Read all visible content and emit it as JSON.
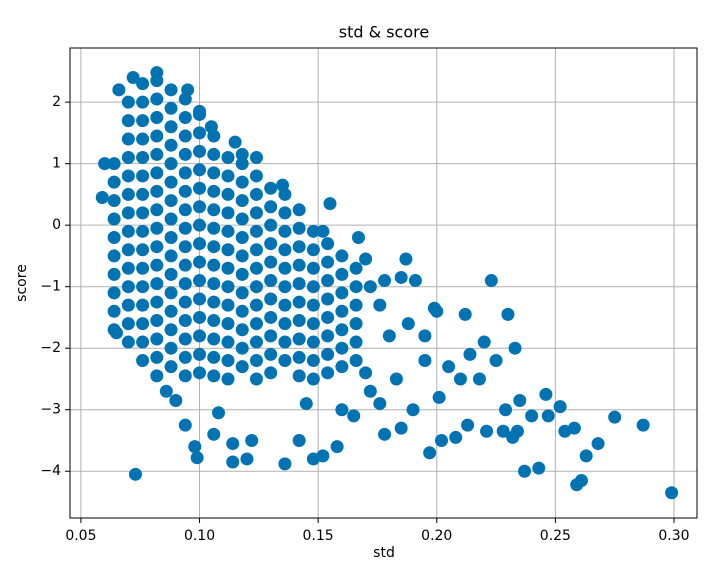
{
  "chart_data": {
    "type": "scatter",
    "title": "std & score",
    "xlabel": "std",
    "ylabel": "score",
    "color": "#0173b2",
    "grid": true,
    "xlim": [
      0.0454,
      0.3097
    ],
    "ylim": [
      -4.76,
      2.88
    ],
    "xticks": [
      0.05,
      {
        "value": 0.1,
        "label": "0.10"
      },
      0.15,
      {
        "value": 0.2,
        "label": "0.20"
      },
      0.25,
      {
        "value": 0.3,
        "label": "0.30"
      }
    ],
    "yticks": [
      {
        "value": -4,
        "label": "−4"
      },
      {
        "value": -3,
        "label": "−3"
      },
      {
        "value": -2,
        "label": "−2"
      },
      {
        "value": -1,
        "label": "−1"
      },
      0,
      1,
      2
    ],
    "x": [
      0.064,
      0.064,
      0.064,
      0.064,
      0.064,
      0.064,
      0.064,
      0.064,
      0.064,
      0.064,
      0.07,
      0.07,
      0.07,
      0.07,
      0.07,
      0.07,
      0.07,
      0.07,
      0.07,
      0.07,
      0.07,
      0.07,
      0.07,
      0.07,
      0.076,
      0.076,
      0.076,
      0.076,
      0.076,
      0.076,
      0.076,
      0.076,
      0.076,
      0.076,
      0.076,
      0.076,
      0.076,
      0.076,
      0.076,
      0.076,
      0.082,
      0.082,
      0.082,
      0.082,
      0.082,
      0.082,
      0.082,
      0.082,
      0.082,
      0.082,
      0.082,
      0.082,
      0.082,
      0.082,
      0.082,
      0.082,
      0.082,
      0.088,
      0.088,
      0.088,
      0.088,
      0.088,
      0.088,
      0.088,
      0.088,
      0.088,
      0.088,
      0.088,
      0.088,
      0.088,
      0.088,
      0.088,
      0.088,
      0.094,
      0.094,
      0.094,
      0.094,
      0.094,
      0.094,
      0.094,
      0.094,
      0.094,
      0.094,
      0.094,
      0.094,
      0.094,
      0.094,
      0.094,
      0.094,
      0.1,
      0.1,
      0.1,
      0.1,
      0.1,
      0.1,
      0.1,
      0.1,
      0.1,
      0.1,
      0.1,
      0.1,
      0.1,
      0.1,
      0.1,
      0.106,
      0.106,
      0.106,
      0.106,
      0.106,
      0.106,
      0.106,
      0.106,
      0.106,
      0.106,
      0.106,
      0.106,
      0.106,
      0.106,
      0.112,
      0.112,
      0.112,
      0.112,
      0.112,
      0.112,
      0.112,
      0.112,
      0.112,
      0.112,
      0.112,
      0.112,
      0.112,
      0.118,
      0.118,
      0.118,
      0.118,
      0.118,
      0.118,
      0.118,
      0.118,
      0.118,
      0.118,
      0.118,
      0.118,
      0.124,
      0.124,
      0.124,
      0.124,
      0.124,
      0.124,
      0.124,
      0.124,
      0.124,
      0.124,
      0.124,
      0.124,
      0.13,
      0.13,
      0.13,
      0.13,
      0.13,
      0.13,
      0.13,
      0.13,
      0.13,
      0.13,
      0.13,
      0.136,
      0.136,
      0.136,
      0.136,
      0.136,
      0.136,
      0.136,
      0.136,
      0.136,
      0.136,
      0.142,
      0.142,
      0.142,
      0.142,
      0.142,
      0.142,
      0.142,
      0.142,
      0.142,
      0.142,
      0.148,
      0.148,
      0.148,
      0.148,
      0.148,
      0.148,
      0.148,
      0.148,
      0.148,
      0.154,
      0.154,
      0.154,
      0.154,
      0.154,
      0.154,
      0.154,
      0.154,
      0.16,
      0.16,
      0.16,
      0.16,
      0.16,
      0.16,
      0.16,
      0.166,
      0.166,
      0.166,
      0.166,
      0.166,
      0.166,
      0.073,
      0.072,
      0.082,
      0.095,
      0.1,
      0.105,
      0.115,
      0.118,
      0.124,
      0.135,
      0.155,
      0.152,
      0.17,
      0.178,
      0.187,
      0.185,
      0.191,
      0.2,
      0.199,
      0.212,
      0.223,
      0.23,
      0.233,
      0.22,
      0.214,
      0.205,
      0.195,
      0.183,
      0.176,
      0.19,
      0.201,
      0.21,
      0.218,
      0.225,
      0.197,
      0.202,
      0.208,
      0.213,
      0.221,
      0.228,
      0.229,
      0.232,
      0.234,
      0.235,
      0.237,
      0.24,
      0.243,
      0.246,
      0.247,
      0.252,
      0.254,
      0.258,
      0.259,
      0.261,
      0.263,
      0.268,
      0.275,
      0.287,
      0.299,
      0.136,
      0.142,
      0.148,
      0.152,
      0.158,
      0.114,
      0.12,
      0.099,
      0.098,
      0.094,
      0.106,
      0.114,
      0.122,
      0.108,
      0.09,
      0.086,
      0.165,
      0.172,
      0.16,
      0.145,
      0.178,
      0.185,
      0.17,
      0.18,
      0.188,
      0.195,
      0.176,
      0.172,
      0.06,
      0.059,
      0.066,
      0.065,
      0.167
    ],
    "values": [
      1.0,
      0.7,
      0.4,
      0.1,
      -0.2,
      -0.5,
      -0.8,
      -1.1,
      -1.4,
      -1.7,
      2.0,
      1.7,
      1.4,
      1.1,
      0.8,
      0.5,
      0.2,
      -0.1,
      -0.4,
      -0.7,
      -1.0,
      -1.3,
      -1.6,
      -1.9,
      2.3,
      2.0,
      1.7,
      1.4,
      1.1,
      0.8,
      0.5,
      0.2,
      -0.1,
      -0.4,
      -0.7,
      -1.0,
      -1.3,
      -1.6,
      -1.9,
      -2.2,
      2.35,
      2.05,
      1.75,
      1.45,
      1.15,
      0.85,
      0.55,
      0.25,
      -0.05,
      -0.35,
      -0.65,
      -0.95,
      -1.25,
      -1.55,
      -1.85,
      -2.15,
      -2.45,
      2.2,
      1.9,
      1.6,
      1.3,
      1.0,
      0.7,
      0.4,
      0.1,
      -0.2,
      -0.5,
      -0.8,
      -1.1,
      -1.4,
      -1.7,
      -2.0,
      -2.3,
      2.05,
      1.75,
      1.45,
      1.15,
      0.85,
      0.55,
      0.25,
      -0.05,
      -0.35,
      -0.65,
      -0.95,
      -1.25,
      -1.55,
      -1.85,
      -2.15,
      -2.45,
      1.8,
      1.5,
      1.2,
      0.9,
      0.6,
      0.3,
      0.0,
      -0.3,
      -0.6,
      -0.9,
      -1.2,
      -1.5,
      -1.8,
      -2.1,
      -2.4,
      1.45,
      1.15,
      0.85,
      0.55,
      0.25,
      -0.05,
      -0.35,
      -0.65,
      -0.95,
      -1.25,
      -1.55,
      -1.85,
      -2.15,
      -2.45,
      1.1,
      0.8,
      0.5,
      0.2,
      -0.1,
      -0.4,
      -0.7,
      -1.0,
      -1.3,
      -1.6,
      -1.9,
      -2.2,
      -2.5,
      1.0,
      0.7,
      0.4,
      0.1,
      -0.2,
      -0.5,
      -0.8,
      -1.1,
      -1.4,
      -1.7,
      -2.0,
      -2.3,
      0.8,
      0.5,
      0.2,
      -0.1,
      -0.4,
      -0.7,
      -1.0,
      -1.3,
      -1.6,
      -1.9,
      -2.2,
      -2.5,
      0.6,
      0.3,
      0.0,
      -0.3,
      -0.6,
      -0.9,
      -1.2,
      -1.5,
      -1.8,
      -2.1,
      -2.4,
      0.5,
      0.2,
      -0.1,
      -0.4,
      -0.7,
      -1.0,
      -1.3,
      -1.6,
      -1.9,
      -2.2,
      0.25,
      -0.05,
      -0.35,
      -0.65,
      -0.95,
      -1.25,
      -1.55,
      -1.85,
      -2.15,
      -2.45,
      -0.1,
      -0.4,
      -0.7,
      -1.0,
      -1.3,
      -1.6,
      -1.9,
      -2.2,
      -2.5,
      -0.3,
      -0.6,
      -0.9,
      -1.2,
      -1.5,
      -1.8,
      -2.1,
      -2.4,
      -0.5,
      -0.8,
      -1.1,
      -1.4,
      -1.7,
      -2.0,
      -2.3,
      -0.7,
      -1.0,
      -1.3,
      -1.6,
      -1.9,
      -2.2,
      -4.05,
      2.4,
      2.48,
      2.2,
      1.85,
      1.6,
      1.35,
      1.15,
      1.1,
      0.65,
      0.35,
      -0.1,
      -0.55,
      -0.9,
      -0.55,
      -0.85,
      -0.9,
      -1.4,
      -1.35,
      -1.45,
      -0.9,
      -1.45,
      -2.0,
      -1.9,
      -2.1,
      -2.3,
      -2.2,
      -2.5,
      -2.9,
      -3.0,
      -2.8,
      -2.5,
      -2.5,
      -2.2,
      -3.7,
      -3.5,
      -3.45,
      -3.25,
      -3.35,
      -3.35,
      -3.0,
      -3.45,
      -3.35,
      -2.85,
      -4.0,
      -3.1,
      -3.95,
      -2.75,
      -3.1,
      -2.95,
      -3.35,
      -3.3,
      -4.22,
      -4.15,
      -3.75,
      -3.55,
      -3.12,
      -3.25,
      -4.35,
      -3.88,
      -3.5,
      -3.8,
      -3.75,
      -3.6,
      -3.85,
      -3.8,
      -3.78,
      -3.6,
      -3.25,
      -3.4,
      -3.55,
      -3.5,
      -3.05,
      -2.85,
      -2.7,
      -3.1,
      -2.7,
      -3.0,
      -2.9,
      -3.4,
      -3.3,
      -2.4,
      -1.8,
      -1.6,
      -1.8,
      -1.3,
      -1.0,
      1.0,
      0.45,
      2.2,
      -1.75,
      -0.2
    ]
  }
}
